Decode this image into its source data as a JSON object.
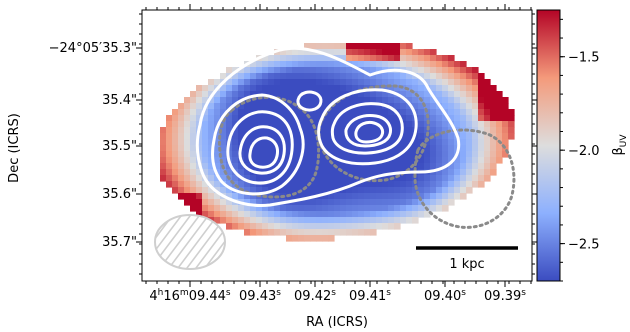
{
  "chart_data": {
    "type": "heatmap",
    "title": "",
    "xlabel": "RA (ICRS)",
    "ylabel": "Dec (ICRS)",
    "x_ticks": [
      {
        "label": "4h16m09.44s",
        "parts": [
          "4",
          "h",
          "16",
          "m",
          "09.44",
          "s"
        ]
      },
      {
        "label": "09.43s",
        "parts": [
          "09.43",
          "s"
        ]
      },
      {
        "label": "09.42s",
        "parts": [
          "09.42",
          "s"
        ]
      },
      {
        "label": "09.41s",
        "parts": [
          "09.41",
          "s"
        ]
      },
      {
        "label": "09.40s",
        "parts": [
          "09.40",
          "s"
        ]
      },
      {
        "label": "09.39s",
        "parts": [
          "09.39",
          "s"
        ]
      }
    ],
    "y_ticks": [
      "−24°05′35.3\"",
      "35.4\"",
      "35.5\"",
      "35.6\"",
      "35.7\""
    ],
    "colorbar": {
      "label": "βUV",
      "label_main": "β",
      "label_sub": "UV",
      "range": [
        -2.7,
        -1.25
      ],
      "ticks": [
        "−1.5",
        "−2.0",
        "−2.5"
      ],
      "tick_values": [
        -1.5,
        -2.0,
        -2.5
      ],
      "colormap": "coolwarm"
    },
    "scalebar_label": "1 kpc",
    "colors": {
      "contours": "#ffffff",
      "dotted_regions": "#8a8a8a",
      "beam": "#cfcfcf"
    },
    "grid": false
  }
}
